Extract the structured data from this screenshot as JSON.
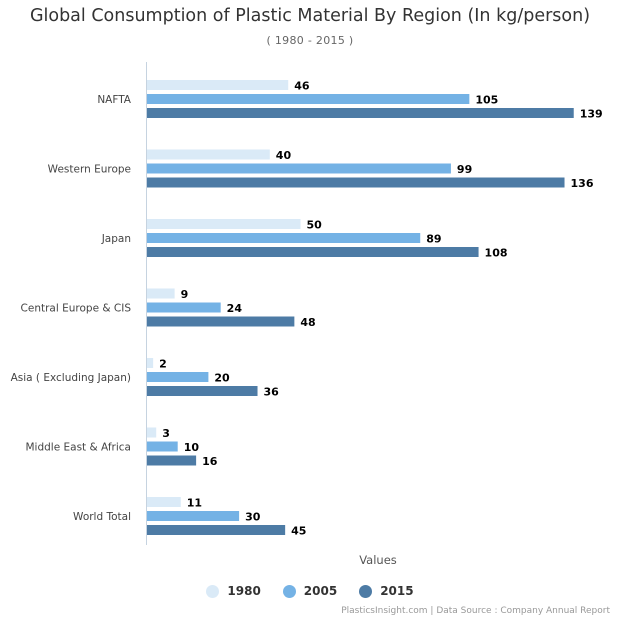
{
  "chart_data": {
    "type": "bar",
    "orientation": "horizontal",
    "title": "Global Consumption of Plastic Material By Region (In kg/person)",
    "subtitle": "( 1980 - 2015 )",
    "categories": [
      "NAFTA",
      "Western Europe",
      "Japan",
      "Central Europe & CIS",
      "Asia ( Excluding Japan)",
      "Middle East & Africa",
      "World Total"
    ],
    "series": [
      {
        "name": "1980",
        "color": "#daeaf7",
        "values": [
          46,
          40,
          50,
          9,
          2,
          3,
          11
        ]
      },
      {
        "name": "2005",
        "color": "#74b2e5",
        "values": [
          105,
          99,
          89,
          24,
          20,
          10,
          30
        ]
      },
      {
        "name": "2015",
        "color": "#4d7ba5",
        "values": [
          139,
          136,
          108,
          48,
          36,
          16,
          45
        ]
      }
    ],
    "xlabel": "Values",
    "ylabel": "",
    "xlim": [
      0,
      140
    ],
    "grid": false,
    "legend_position": "bottom-center",
    "data_labels": true
  },
  "credits": "PlasticsInsight.com | Data Source : Company Annual Report"
}
